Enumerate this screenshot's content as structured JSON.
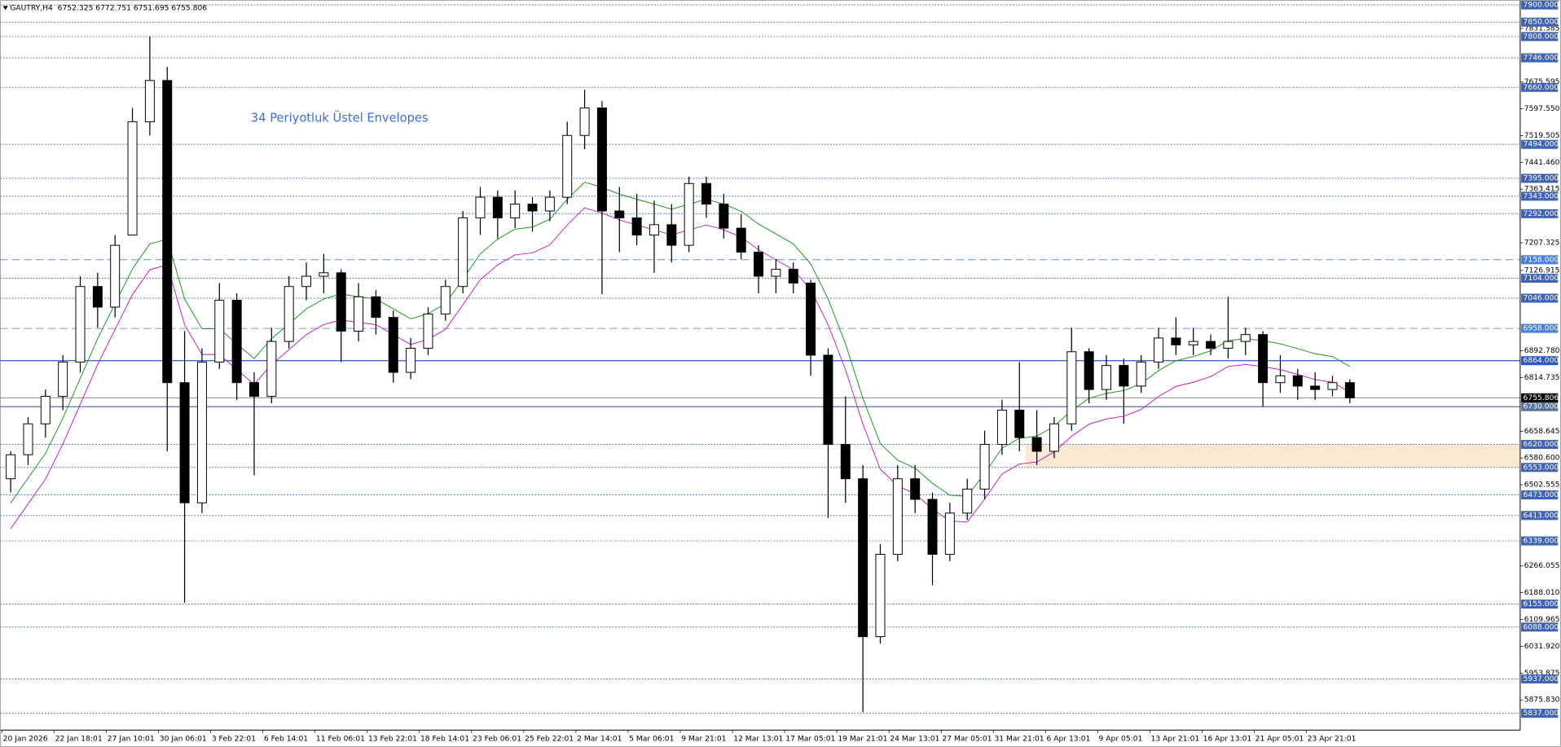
{
  "chart_data": {
    "type": "candlestick",
    "title": "GAUTRY,H4  6752.325 6772.751 6751.695 6755.806",
    "annotation": "34 Periyotluk Üstel Envelopes",
    "categories": [
      "20 Jan 2026",
      null,
      null,
      "22 Jan 18:01",
      null,
      null,
      "27 Jan 10:01",
      null,
      null,
      "30 Jan 06:01",
      null,
      null,
      "3 Feb 22:01",
      null,
      null,
      "6 Feb 14:01",
      null,
      null,
      "11 Feb 06:01",
      null,
      null,
      "13 Feb 22:01",
      null,
      null,
      "18 Feb 14:01",
      null,
      null,
      "23 Feb 06:01",
      null,
      null,
      "25 Feb 22:01",
      null,
      null,
      "2 Mar 14:01",
      null,
      null,
      "5 Mar 06:01",
      null,
      null,
      "9 Mar 21:01",
      null,
      null,
      "12 Mar 13:01",
      null,
      null,
      "17 Mar 05:01",
      null,
      null,
      "19 Mar 21:01",
      null,
      null,
      "24 Mar 13:01",
      null,
      null,
      "27 Mar 05:01",
      null,
      null,
      "31 Mar 21:01",
      null,
      null,
      "6 Apr 13:01",
      null,
      null,
      "9 Apr 05:01",
      null,
      null,
      "13 Apr 21:01",
      null,
      null,
      "16 Apr 13:01",
      null,
      null,
      "21 Apr 05:01",
      null,
      null,
      "23 Apr 21:01",
      null,
      null
    ],
    "open": [
      6520,
      6590,
      6680,
      6760,
      6860,
      7080,
      7020,
      7230,
      7560,
      7680,
      6800,
      6450,
      6860,
      7040,
      6800,
      6760,
      6920,
      7080,
      7110,
      7120,
      6950,
      7050,
      6990,
      6830,
      6900,
      7000,
      7080,
      7280,
      7340,
      7280,
      7320,
      7300,
      7340,
      7520,
      7600,
      7300,
      7280,
      7230,
      7260,
      7200,
      7380,
      7320,
      7250,
      7180,
      7110,
      7130,
      7090,
      6880,
      6620,
      6520,
      6060,
      6300,
      6520,
      6460,
      6300,
      6420,
      6490,
      6620,
      6720,
      6640,
      6600,
      6680,
      6890,
      6780,
      6850,
      6790,
      6860,
      6930,
      6910,
      6920,
      6900,
      6920,
      6940,
      6800,
      6820,
      6790,
      6780,
      6800
    ],
    "high": [
      6600,
      6700,
      6780,
      6880,
      7110,
      7120,
      7230,
      7600,
      7808,
      7720,
      6950,
      6900,
      7090,
      7060,
      6830,
      6960,
      7110,
      7150,
      7175,
      7130,
      7090,
      7070,
      7010,
      6930,
      7020,
      7100,
      7300,
      7370,
      7360,
      7360,
      7340,
      7360,
      7560,
      7653,
      7620,
      7370,
      7350,
      7330,
      7320,
      7400,
      7400,
      7350,
      7290,
      7200,
      7160,
      7150,
      7100,
      6900,
      6760,
      6560,
      6330,
      6560,
      6560,
      6480,
      6450,
      6520,
      6660,
      6750,
      6860,
      6720,
      6700,
      6960,
      6900,
      6880,
      6870,
      6880,
      6960,
      6990,
      6960,
      6940,
      7050,
      6960,
      6950,
      6880,
      6840,
      6830,
      6820,
      6810
    ],
    "low": [
      6480,
      6560,
      6640,
      6720,
      6830,
      6960,
      6990,
      7230,
      7520,
      6600,
      6159,
      6420,
      6840,
      6750,
      6530,
      6740,
      6900,
      7040,
      7060,
      6860,
      6920,
      6940,
      6800,
      6810,
      6880,
      6980,
      7060,
      7230,
      7220,
      7250,
      7240,
      7270,
      7320,
      7480,
      7058,
      7180,
      7200,
      7120,
      7150,
      7180,
      7280,
      7220,
      7160,
      7060,
      7060,
      7060,
      6820,
      6406,
      6450,
      5840,
      6040,
      6280,
      6420,
      6210,
      6280,
      6400,
      6460,
      6590,
      6600,
      6560,
      6580,
      6660,
      6740,
      6750,
      6680,
      6770,
      6840,
      6880,
      6880,
      6880,
      6870,
      6880,
      6730,
      6770,
      6750,
      6750,
      6760,
      6740
    ],
    "close": [
      6590,
      6680,
      6760,
      6860,
      7080,
      7020,
      7200,
      7560,
      7680,
      6800,
      6450,
      6860,
      7040,
      6800,
      6760,
      6920,
      7080,
      7110,
      7120,
      6950,
      7050,
      6990,
      6830,
      6900,
      7000,
      7080,
      7280,
      7340,
      7280,
      7320,
      7300,
      7340,
      7520,
      7600,
      7300,
      7280,
      7230,
      7260,
      7200,
      7380,
      7320,
      7250,
      7180,
      7110,
      7130,
      7090,
      6880,
      6620,
      6520,
      6060,
      6300,
      6520,
      6460,
      6300,
      6420,
      6490,
      6620,
      6720,
      6640,
      6600,
      6680,
      6890,
      6780,
      6850,
      6790,
      6860,
      6930,
      6910,
      6920,
      6900,
      6920,
      6940,
      6800,
      6820,
      6790,
      6780,
      6800,
      6755.806
    ],
    "up_color": "#ffffff",
    "down_color": "#000000",
    "wick_color": "#000000",
    "envelopes": [
      {
        "color": "#1a9a1a",
        "values": [
          6449,
          6522,
          6594,
          6696,
          6812,
          6928,
          7030,
          7131,
          7204,
          7218,
          7044,
          6957,
          6957,
          6913,
          6870,
          6928,
          6971,
          7015,
          7044,
          7058,
          7050,
          7044,
          7015,
          6986,
          7001,
          7030,
          7102,
          7175,
          7218,
          7247,
          7253,
          7276,
          7334,
          7384,
          7369,
          7349,
          7334,
          7320,
          7305,
          7320,
          7334,
          7320,
          7299,
          7262,
          7233,
          7204,
          7146,
          7044,
          6913,
          6754,
          6623,
          6574,
          6551,
          6507,
          6472,
          6469,
          6536,
          6609,
          6638,
          6644,
          6673,
          6719,
          6754,
          6769,
          6777,
          6797,
          6835,
          6864,
          6876,
          6893,
          6922,
          6928,
          6922,
          6913,
          6899,
          6884,
          6876,
          6847
        ]
      },
      {
        "color": "#c81ec8",
        "values": [
          6374,
          6447,
          6519,
          6621,
          6737,
          6853,
          6955,
          7056,
          7129,
          7143,
          6969,
          6882,
          6882,
          6838,
          6795,
          6853,
          6896,
          6940,
          6969,
          6983,
          6975,
          6969,
          6940,
          6911,
          6926,
          6955,
          7027,
          7100,
          7143,
          7172,
          7178,
          7201,
          7259,
          7309,
          7294,
          7274,
          7259,
          7245,
          7230,
          7245,
          7259,
          7245,
          7224,
          7187,
          7158,
          7129,
          7071,
          6969,
          6838,
          6679,
          6548,
          6499,
          6476,
          6432,
          6397,
          6394,
          6461,
          6534,
          6563,
          6569,
          6598,
          6644,
          6679,
          6694,
          6702,
          6722,
          6760,
          6789,
          6801,
          6818,
          6847,
          6853,
          6847,
          6838,
          6824,
          6809,
          6801,
          6772
        ]
      }
    ],
    "ylim": [
      5788,
      7914.5
    ],
    "yticks": [
      7831.585,
      7675.595,
      {
        "value": 7597.55,
        "label": "7597.550"
      },
      7519.505,
      {
        "value": 7441.46,
        "label": "7441.460"
      },
      7363.415,
      7207.325,
      7126.915,
      {
        "value": 6892.78,
        "label": "6892.780"
      },
      6814.735,
      6658.645,
      {
        "value": 6580.6,
        "label": "6580.600"
      },
      6502.555,
      6266.055,
      {
        "value": 6188.01,
        "label": "6188.010"
      },
      6109.965,
      {
        "value": 6031.92,
        "label": "6031.920"
      },
      5953.875,
      {
        "value": 5875.83,
        "label": "5875.830"
      }
    ],
    "levels": [
      {
        "value": 7900,
        "label": "7900.000",
        "style": "dotted",
        "color": "#3d62b3"
      },
      {
        "value": 7850,
        "label": "7850.000",
        "style": "dotted",
        "color": "#3d62b3"
      },
      {
        "value": 7808,
        "label": "7808.000",
        "style": "dotted",
        "color": "#3d62b3"
      },
      {
        "value": 7746,
        "label": "7746.000",
        "style": "dotted",
        "color": "#3d62b3"
      },
      {
        "value": 7660,
        "label": "7660.000",
        "style": "dotted",
        "color": "#3d62b3"
      },
      {
        "value": 7494,
        "label": "7494.000",
        "style": "dotted",
        "color": "#3d62b3"
      },
      {
        "value": 7395,
        "label": "7395.000",
        "style": "dotted",
        "color": "#3d62b3"
      },
      {
        "value": 7343,
        "label": "7343.000",
        "style": "dotted",
        "color": "#3d62b3"
      },
      {
        "value": 7292,
        "label": "7292.000",
        "style": "dotted",
        "color": "#3d62b3"
      },
      {
        "value": 7158,
        "label": "7158.000",
        "style": "dashed",
        "color": "#4a7fe0"
      },
      {
        "value": 7104,
        "label": "7104.000",
        "style": "dotted",
        "color": "#3d62b3"
      },
      {
        "value": 7046,
        "label": "7046.000",
        "style": "dotted",
        "color": "#3d62b3"
      },
      {
        "value": 6958,
        "label": "6958.000",
        "style": "dashed",
        "color": "#4a7fe0"
      },
      {
        "value": 6864,
        "label": "6864.000",
        "style": "solid",
        "color": "#2a56c6"
      },
      {
        "value": 6730,
        "label": "6730.000",
        "style": "solid",
        "color": "#58709a"
      },
      {
        "value": 6620,
        "label": "6620.000",
        "style": "dotted",
        "color": "#3d62b3"
      },
      {
        "value": 6553,
        "label": "6553.000",
        "style": "dotted",
        "color": "#3d62b3"
      },
      {
        "value": 6473,
        "label": "6473.000",
        "style": "dotted",
        "color": "#3d62b3"
      },
      {
        "value": 6413,
        "label": "6413.000",
        "style": "dotted",
        "color": "#3d62b3"
      },
      {
        "value": 6339,
        "label": "6339.000",
        "style": "dotted",
        "color": "#3d62b3"
      },
      {
        "value": 6155,
        "label": "6155.000",
        "style": "dotted",
        "color": "#3d62b3"
      },
      {
        "value": 6088,
        "label": "6088.000",
        "style": "dotted",
        "color": "#3d62b3"
      },
      {
        "value": 5937,
        "label": "5937.000",
        "style": "dotted",
        "color": "#3d62b3"
      },
      {
        "value": 5837,
        "label": "5837.000",
        "style": "dotted",
        "color": "#3d62b3"
      }
    ],
    "zone": {
      "ymin": 6553,
      "ymax": 6620,
      "color": "#fde9d2"
    },
    "last_price": 6755.806
  }
}
